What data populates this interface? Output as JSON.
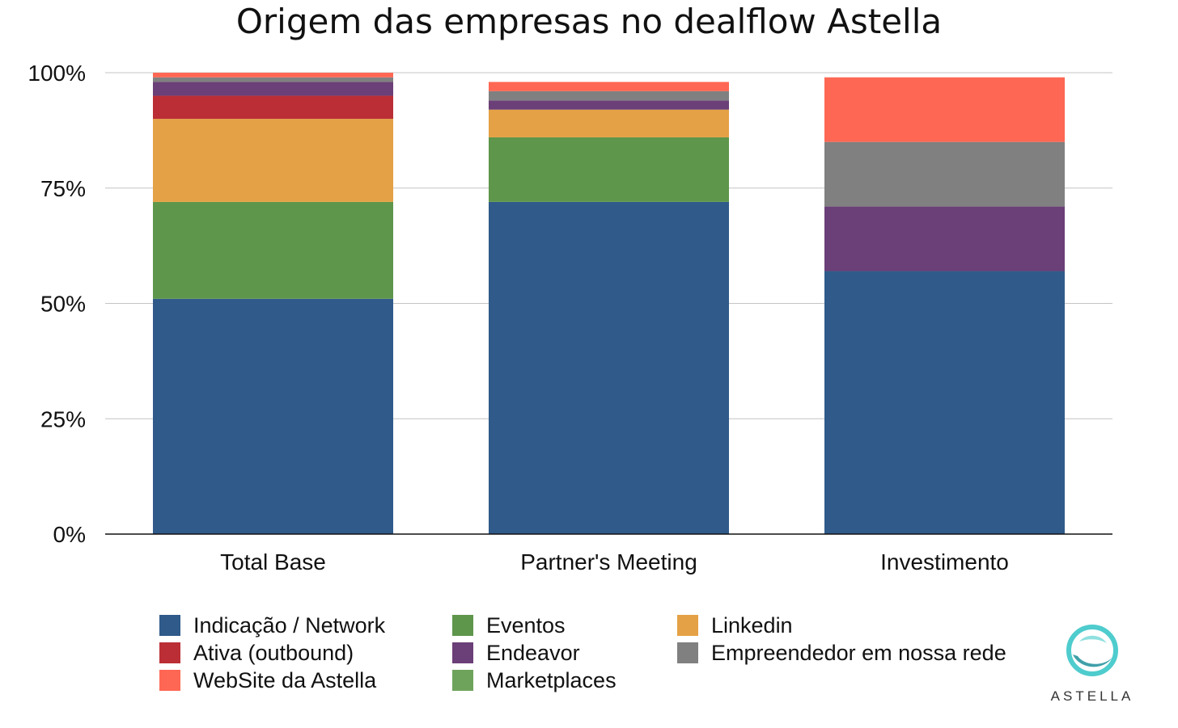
{
  "chart_data": {
    "type": "bar",
    "stacked": true,
    "title": "Origem das empresas no dealflow Astella",
    "xlabel": "",
    "ylabel": "",
    "ylim": [
      0,
      100
    ],
    "yticks": [
      0,
      25,
      50,
      75,
      100
    ],
    "ytick_labels": [
      "0%",
      "25%",
      "50%",
      "75%",
      "100%"
    ],
    "categories": [
      "Total Base",
      "Partner's Meeting",
      "Investimento"
    ],
    "series": [
      {
        "name": "Indicação / Network",
        "color": "#2f5a8a",
        "values": [
          51,
          72,
          57
        ]
      },
      {
        "name": "Eventos",
        "color": "#5e964b",
        "values": [
          21,
          14,
          0
        ]
      },
      {
        "name": "Linkedin",
        "color": "#e5a145",
        "values": [
          18,
          6,
          0
        ]
      },
      {
        "name": "Ativa (outbound)",
        "color": "#bb2e35",
        "values": [
          5,
          0,
          0
        ]
      },
      {
        "name": "Endeavor",
        "color": "#6b3f77",
        "values": [
          3,
          2,
          14
        ]
      },
      {
        "name": "Empreendedor em nossa rede",
        "color": "#808080",
        "values": [
          1,
          2,
          14
        ]
      },
      {
        "name": "Marketplaces",
        "color": "#6ea35b",
        "values": [
          0,
          0,
          0
        ]
      },
      {
        "name": "WebSite da Astella",
        "color": "#fe6753",
        "values": [
          1,
          2,
          14
        ]
      }
    ],
    "legend": {
      "placement": "bottom",
      "order": [
        "Indicação / Network",
        "Eventos",
        "Linkedin",
        "Ativa (outbound)",
        "Endeavor",
        "Empreendedor em nossa rede",
        "WebSite da Astella",
        "Marketplaces"
      ]
    },
    "grid": true
  },
  "logo": {
    "text": "ASTELLA",
    "color": "#3cc6c8"
  }
}
